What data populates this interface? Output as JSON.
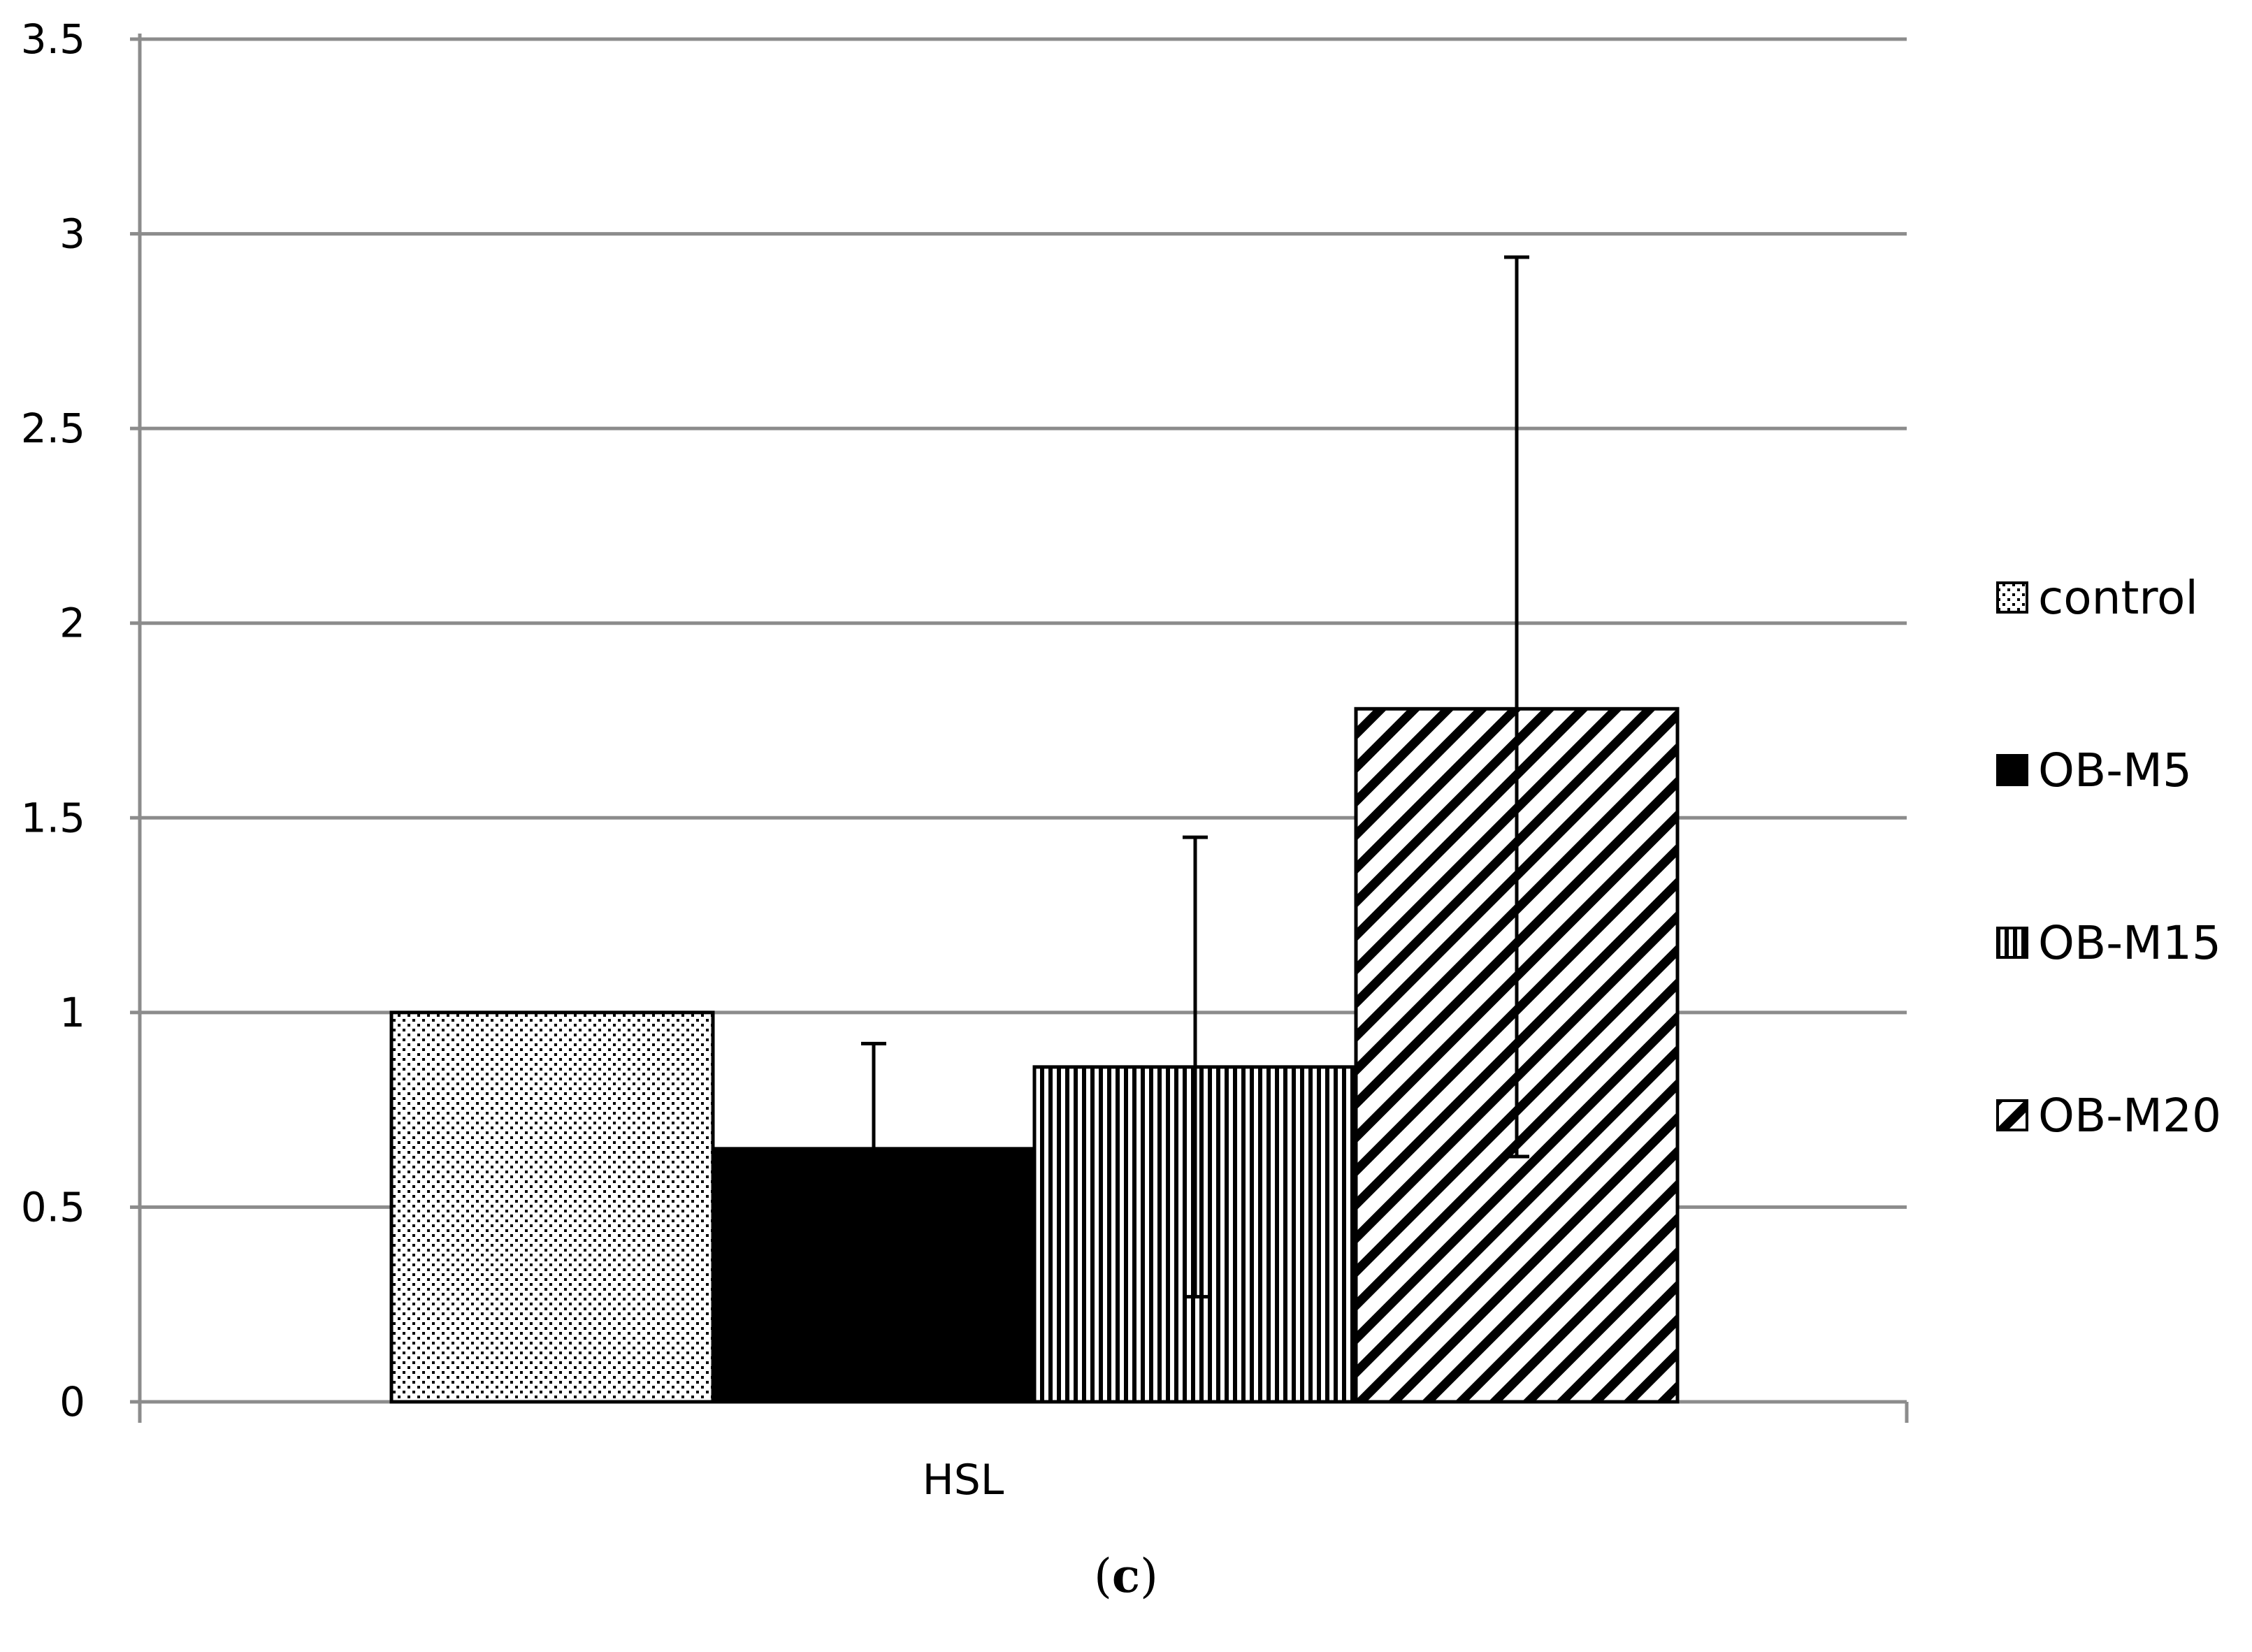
{
  "chart_data": {
    "type": "bar",
    "categories": [
      "HSL"
    ],
    "series": [
      {
        "name": "control",
        "values": [
          1.0
        ],
        "error_upper": [
          1.0
        ],
        "pattern": "dots"
      },
      {
        "name": "OB-M5",
        "values": [
          0.65
        ],
        "error_upper": [
          0.92
        ],
        "pattern": "solid"
      },
      {
        "name": "OB-M15",
        "values": [
          0.86
        ],
        "error_upper": [
          1.45
        ],
        "error_lower": [
          0.27
        ],
        "pattern": "vertical-lines"
      },
      {
        "name": "OB-M20",
        "values": [
          1.78
        ],
        "error_upper": [
          2.94
        ],
        "error_lower": [
          0.63
        ],
        "pattern": "diagonal-lines"
      }
    ],
    "yticks": [
      "0",
      "0.5",
      "1",
      "1.5",
      "2",
      "2.5",
      "3",
      "3.5"
    ],
    "ylim": [
      0,
      3.5
    ],
    "grid": true,
    "legend": "right",
    "colors": {
      "bar_fill": "#000000",
      "bar_bg": "#ffffff",
      "grid": "#8c8c8c",
      "error_bar": "#000000"
    }
  },
  "panel_label": {
    "open": "(",
    "letter": "c",
    "close": ")"
  }
}
